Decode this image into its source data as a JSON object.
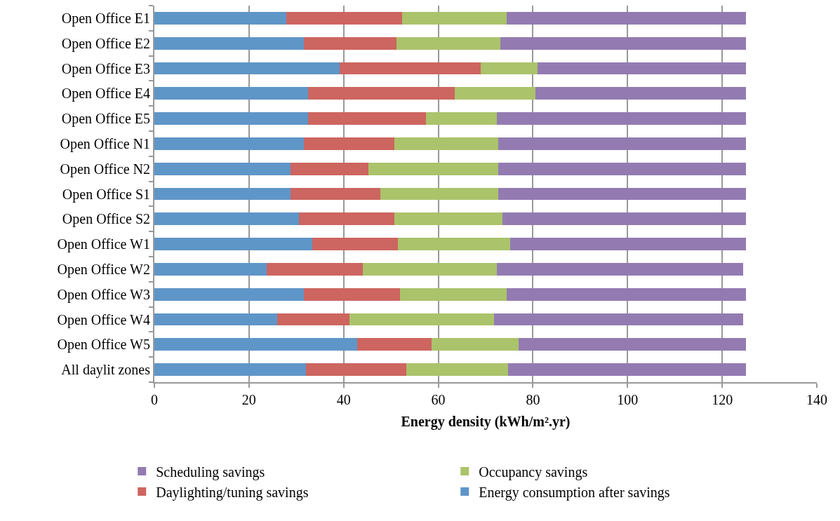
{
  "chart_data": {
    "type": "bar",
    "orientation": "horizontal",
    "stacked": true,
    "xlabel": "Energy density (kWh/m².yr)",
    "categories": [
      "Open Office E1",
      "Open Office E2",
      "Open Office E3",
      "Open Office E4",
      "Open Office E5",
      "Open Office N1",
      "Open Office N2",
      "Open Office S1",
      "Open Office S2",
      "Open Office W1",
      "Open Office W2",
      "Open Office W3",
      "Open Office W4",
      "Open Office W5",
      "All daylit zones"
    ],
    "series": [
      {
        "name": "Energy consumption after savings",
        "color": "#5f96c8",
        "values": [
          27.9,
          31.6,
          39.2,
          32.5,
          32.5,
          31.6,
          28.8,
          28.8,
          30.5,
          33.4,
          23.8,
          31.6,
          25.9,
          42.9,
          32.1
        ]
      },
      {
        "name": "Daylighting/tuning savings",
        "color": "#cd6560",
        "values": [
          24.5,
          19.6,
          29.8,
          31.0,
          24.9,
          19.1,
          16.5,
          19.0,
          20.2,
          18.1,
          20.2,
          20.3,
          15.3,
          15.7,
          21.1
        ]
      },
      {
        "name": "Occupancy savings",
        "color": "#abc36b",
        "values": [
          22.0,
          21.9,
          12.0,
          17.1,
          14.9,
          22.0,
          27.4,
          24.9,
          22.8,
          23.7,
          28.3,
          22.5,
          30.6,
          18.3,
          21.6
        ]
      },
      {
        "name": "Scheduling savings",
        "color": "#937bb2",
        "values": [
          50.6,
          51.9,
          44.0,
          44.4,
          52.7,
          52.3,
          52.3,
          52.3,
          51.5,
          49.8,
          52.1,
          50.6,
          52.6,
          48.1,
          50.2
        ]
      }
    ],
    "xlim": [
      0,
      140
    ],
    "xticks": [
      0,
      20,
      40,
      60,
      80,
      100,
      120,
      140
    ],
    "grid": "x",
    "legend": "bottom"
  }
}
